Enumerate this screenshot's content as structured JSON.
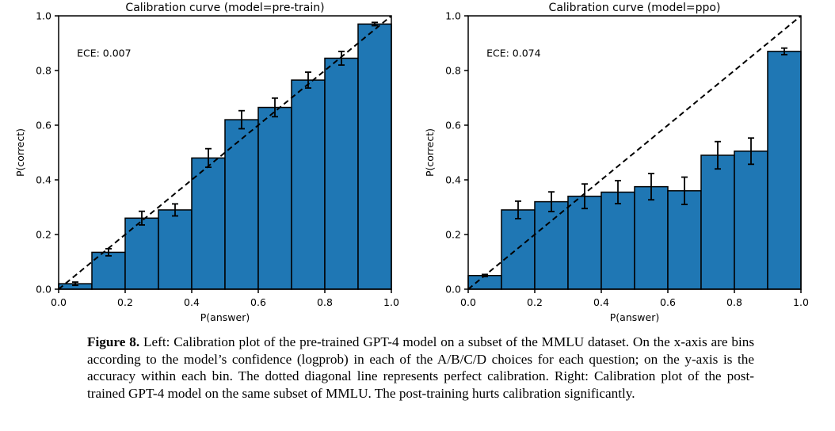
{
  "page": {
    "background": "#ffffff"
  },
  "caption": {
    "label": "Figure 8.",
    "text": " Left: Calibration plot of the pre-trained GPT-4 model on a subset of the MMLU dataset. On the x-axis are bins according to the model’s confidence (logprob) in each of the A/B/C/D choices for each question; on the y-axis is the accuracy within each bin. The dotted diagonal line represents perfect calibration. Right: Calibration plot of the post-trained GPT-4 model on the same subset of MMLU. The post-training hurts calibration significantly."
  },
  "chart_data": [
    {
      "type": "bar",
      "title": "Calibration curve (model=pre-train)",
      "annotation": "ECE: 0.007",
      "xlabel": "P(answer)",
      "ylabel": "P(correct)",
      "xlim": [
        0.0,
        1.0
      ],
      "ylim": [
        0.0,
        1.0
      ],
      "xticks": [
        0.0,
        0.2,
        0.4,
        0.6,
        0.8,
        1.0
      ],
      "yticks": [
        0.0,
        0.2,
        0.4,
        0.6,
        0.8,
        1.0
      ],
      "bin_edges": [
        0.0,
        0.1,
        0.2,
        0.3,
        0.4,
        0.5,
        0.6,
        0.7,
        0.8,
        0.9,
        1.0
      ],
      "values": [
        0.02,
        0.135,
        0.26,
        0.29,
        0.48,
        0.62,
        0.665,
        0.765,
        0.845,
        0.97
      ],
      "errors": [
        0.006,
        0.013,
        0.025,
        0.022,
        0.034,
        0.033,
        0.034,
        0.029,
        0.025,
        0.006
      ],
      "bar_color": "#1f77b4",
      "bar_edge_color": "#000000",
      "diagonal": {
        "style": "dashed",
        "from": [
          0.0,
          0.0
        ],
        "to": [
          1.0,
          1.0
        ],
        "color": "#000000"
      },
      "grid": false,
      "legend": null
    },
    {
      "type": "bar",
      "title": "Calibration curve (model=ppo)",
      "annotation": "ECE: 0.074",
      "xlabel": "P(answer)",
      "ylabel": "P(correct)",
      "xlim": [
        0.0,
        1.0
      ],
      "ylim": [
        0.0,
        1.0
      ],
      "xticks": [
        0.0,
        0.2,
        0.4,
        0.6,
        0.8,
        1.0
      ],
      "yticks": [
        0.0,
        0.2,
        0.4,
        0.6,
        0.8,
        1.0
      ],
      "bin_edges": [
        0.0,
        0.1,
        0.2,
        0.3,
        0.4,
        0.5,
        0.6,
        0.7,
        0.8,
        0.9,
        1.0
      ],
      "values": [
        0.05,
        0.29,
        0.32,
        0.34,
        0.355,
        0.375,
        0.36,
        0.49,
        0.505,
        0.87
      ],
      "errors": [
        0.004,
        0.032,
        0.036,
        0.045,
        0.042,
        0.048,
        0.05,
        0.05,
        0.048,
        0.012
      ],
      "bar_color": "#1f77b4",
      "bar_edge_color": "#000000",
      "diagonal": {
        "style": "dashed",
        "from": [
          0.0,
          0.0
        ],
        "to": [
          1.0,
          1.0
        ],
        "color": "#000000"
      },
      "grid": false,
      "legend": null
    }
  ]
}
